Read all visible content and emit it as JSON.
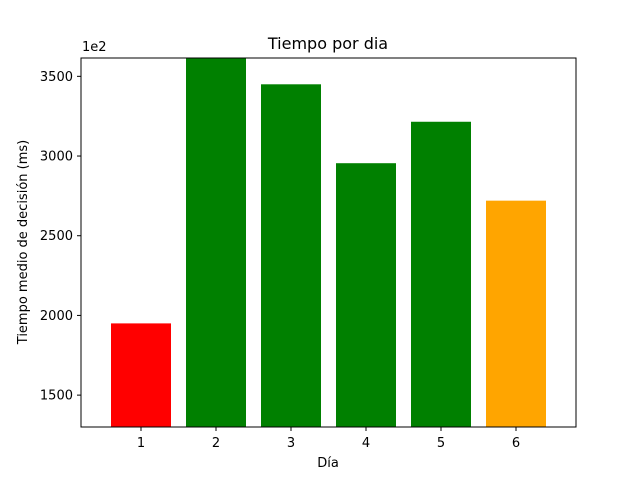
{
  "chart_data": {
    "type": "bar",
    "title": "Tiempo por dia",
    "xlabel": "Día",
    "ylabel": "Tiempo medio de decisión (ms)",
    "offset_text": "1e2",
    "categories": [
      "1",
      "2",
      "3",
      "4",
      "5",
      "6"
    ],
    "values": [
      1950,
      3615,
      3450,
      2955,
      3215,
      2720
    ],
    "colors": [
      "#ff0000",
      "#008000",
      "#008000",
      "#008000",
      "#008000",
      "#ffa500"
    ],
    "ylim": [
      1300,
      3615
    ],
    "yticks": [
      1500,
      2000,
      2500,
      3000,
      3500
    ],
    "grid": false,
    "legend": "none"
  }
}
